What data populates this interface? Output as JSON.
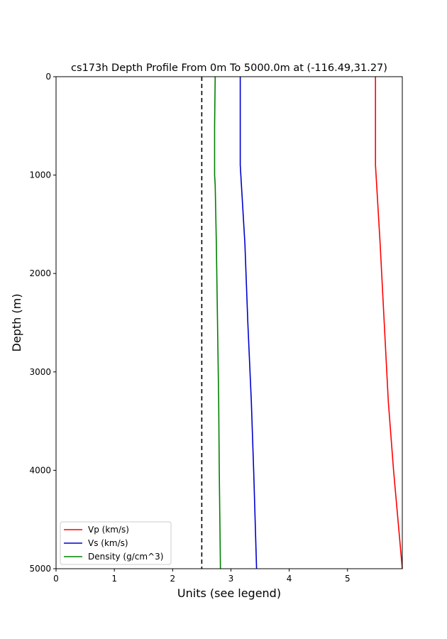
{
  "chart_data": {
    "type": "line",
    "title": "cs173h Depth Profile From 0m To 5000.0m at (-116.49,31.27)",
    "xlabel": "Units (see legend)",
    "ylabel": "Depth (m)",
    "xlim": [
      0,
      5.94
    ],
    "ylim": [
      0,
      5000
    ],
    "y_inverted": true,
    "x_ticks": [
      "0",
      "1",
      "2",
      "3",
      "4",
      "5"
    ],
    "y_ticks": [
      "0",
      "1000",
      "2000",
      "3000",
      "4000",
      "5000"
    ],
    "grid": false,
    "legend_position": "lower-left",
    "reference_line": {
      "x": 2.5,
      "style": "dashed",
      "color": "#000000"
    },
    "series": [
      {
        "name": "Vp (km/s)",
        "color": "#ff0000",
        "points": [
          [
            5.48,
            0
          ],
          [
            5.48,
            500
          ],
          [
            5.48,
            900
          ],
          [
            5.49,
            1000
          ],
          [
            5.5,
            1100
          ],
          [
            5.56,
            1700
          ],
          [
            5.63,
            2500
          ],
          [
            5.7,
            3300
          ],
          [
            5.79,
            4000
          ],
          [
            5.94,
            5000
          ]
        ]
      },
      {
        "name": "Vs (km/s)",
        "color": "#0000cc",
        "points": [
          [
            3.16,
            0
          ],
          [
            3.16,
            500
          ],
          [
            3.16,
            900
          ],
          [
            3.17,
            1000
          ],
          [
            3.18,
            1100
          ],
          [
            3.24,
            1700
          ],
          [
            3.29,
            2500
          ],
          [
            3.35,
            3300
          ],
          [
            3.39,
            4000
          ],
          [
            3.44,
            5000
          ]
        ]
      },
      {
        "name": "Density (g/cm^3)",
        "color": "#008000",
        "points": [
          [
            2.73,
            0
          ],
          [
            2.72,
            500
          ],
          [
            2.72,
            1000
          ],
          [
            2.73,
            1100
          ],
          [
            2.75,
            1700
          ],
          [
            2.77,
            2500
          ],
          [
            2.79,
            3300
          ],
          [
            2.8,
            4000
          ],
          [
            2.82,
            5000
          ]
        ]
      }
    ]
  }
}
